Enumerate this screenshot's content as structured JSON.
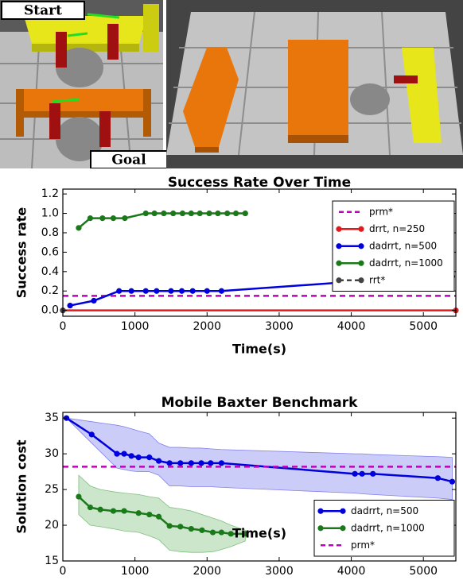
{
  "scene_labels": {
    "start": "Start",
    "goal": "Goal"
  },
  "chart_data": [
    {
      "type": "line",
      "title": "Success Rate Over Time",
      "x_label": "Time(s)",
      "y_label": "Success rate",
      "xlim": [
        0,
        5450
      ],
      "ylim": [
        -0.06,
        1.25
      ],
      "xticks": [
        0,
        1000,
        2000,
        3000,
        4000,
        5000
      ],
      "yticks": [
        {
          "value": 0,
          "label": "0.0"
        },
        {
          "value": 0.2,
          "label": "0.2"
        },
        {
          "value": 0.4,
          "label": "0.4"
        },
        {
          "value": 0.6,
          "label": "0.6"
        },
        {
          "value": 0.8,
          "label": "0.8"
        },
        {
          "value": 1.0,
          "label": "1.0"
        },
        {
          "value": 1.2,
          "label": "1.2"
        }
      ],
      "legend": "upper right",
      "grid": false,
      "series": [
        {
          "name": "prm*",
          "color": "#bf00bf",
          "linestyle": "dashed",
          "marker": false,
          "x": [
            0,
            5450
          ],
          "values": [
            0.15,
            0.15
          ]
        },
        {
          "name": "drrt, n=250",
          "color": "#e31a1c",
          "linestyle": "solid",
          "marker": true,
          "x": [
            0,
            5450
          ],
          "values": [
            0,
            0
          ]
        },
        {
          "name": "dadrrt, n=500",
          "color": "#0000dd",
          "linestyle": "solid",
          "marker": true,
          "x": [
            100,
            430,
            780,
            950,
            1150,
            1300,
            1500,
            1650,
            1800,
            2000,
            2200,
            4100,
            4250,
            4400,
            5250,
            5400
          ],
          "values": [
            0.05,
            0.1,
            0.2,
            0.2,
            0.2,
            0.2,
            0.2,
            0.2,
            0.2,
            0.2,
            0.2,
            0.3,
            0.3,
            0.3,
            0.35,
            0.35
          ]
        },
        {
          "name": "dadrrt, n=1000",
          "color": "#1a7a1a",
          "linestyle": "solid",
          "marker": true,
          "x": [
            220,
            380,
            550,
            700,
            860,
            1150,
            1270,
            1400,
            1530,
            1660,
            1780,
            1900,
            2030,
            2150,
            2280,
            2400,
            2530
          ],
          "values": [
            0.85,
            0.95,
            0.95,
            0.95,
            0.95,
            1.0,
            1.0,
            1.0,
            1.0,
            1.0,
            1.0,
            1.0,
            1.0,
            1.0,
            1.0,
            1.0,
            1.0
          ]
        },
        {
          "name": "rrt*",
          "color": "#444444",
          "linestyle": "dashed",
          "marker": true,
          "x": [
            0
          ],
          "values": [
            0
          ]
        }
      ]
    },
    {
      "type": "line",
      "title": "Mobile Baxter Benchmark",
      "x_label": "Time(s)",
      "y_label": "Solution cost",
      "xlim": [
        0,
        5450
      ],
      "ylim": [
        15,
        35.8
      ],
      "xticks": [
        0,
        1000,
        2000,
        3000,
        4000,
        5000
      ],
      "yticks": [
        15,
        20,
        25,
        30,
        35
      ],
      "legend": "lower right",
      "grid": false,
      "series": [
        {
          "name": "dadrrt, n=500",
          "color": "#0000dd",
          "band_color": "#8080ee",
          "linestyle": "solid",
          "marker": true,
          "x": [
            50,
            400,
            750,
            850,
            950,
            1050,
            1200,
            1330,
            1480,
            1630,
            1780,
            1920,
            2050,
            2200,
            4050,
            4150,
            4300,
            5200,
            5400
          ],
          "values": [
            35,
            32.7,
            30,
            30,
            29.7,
            29.5,
            29.5,
            29,
            28.7,
            28.7,
            28.7,
            28.7,
            28.7,
            28.7,
            27.2,
            27.2,
            27.2,
            26.6,
            26.1
          ],
          "upper": [
            35,
            34.5,
            34,
            33.8,
            33.5,
            33.2,
            32.8,
            31.5,
            30.9,
            30.9,
            30.8,
            30.8,
            30.7,
            30.6,
            30,
            30,
            29.9,
            29.6,
            29.5
          ],
          "lower": [
            35,
            31.5,
            28,
            27.8,
            27.6,
            27.5,
            27.5,
            27,
            25.5,
            25.5,
            25.4,
            25.4,
            25.4,
            25.3,
            24.5,
            24.4,
            24.3,
            23.8,
            23.6
          ]
        },
        {
          "name": "dadrrt, n=1000",
          "color": "#1a7a1a",
          "band_color": "#80c080",
          "linestyle": "solid",
          "marker": true,
          "x": [
            220,
            380,
            520,
            700,
            850,
            1050,
            1200,
            1330,
            1480,
            1630,
            1780,
            1930,
            2080,
            2200,
            2330,
            2530
          ],
          "values": [
            24,
            22.5,
            22.2,
            22,
            22,
            21.7,
            21.5,
            21.2,
            19.9,
            19.8,
            19.5,
            19.3,
            19,
            19,
            18.8,
            18.8
          ],
          "upper": [
            27,
            25.5,
            25,
            24.7,
            24.5,
            24.3,
            24,
            23.8,
            22.5,
            22.3,
            22,
            21.5,
            21,
            20.6,
            20,
            19.3
          ],
          "lower": [
            21.5,
            20,
            19.8,
            19.5,
            19.2,
            19,
            18.5,
            18,
            16.5,
            16.3,
            16.2,
            16.2,
            16.3,
            16.6,
            17,
            17.8
          ]
        },
        {
          "name": "prm*",
          "color": "#bf00bf",
          "linestyle": "dashed",
          "marker": false,
          "x": [
            0,
            5450
          ],
          "values": [
            28.2,
            28.2
          ]
        }
      ]
    }
  ]
}
